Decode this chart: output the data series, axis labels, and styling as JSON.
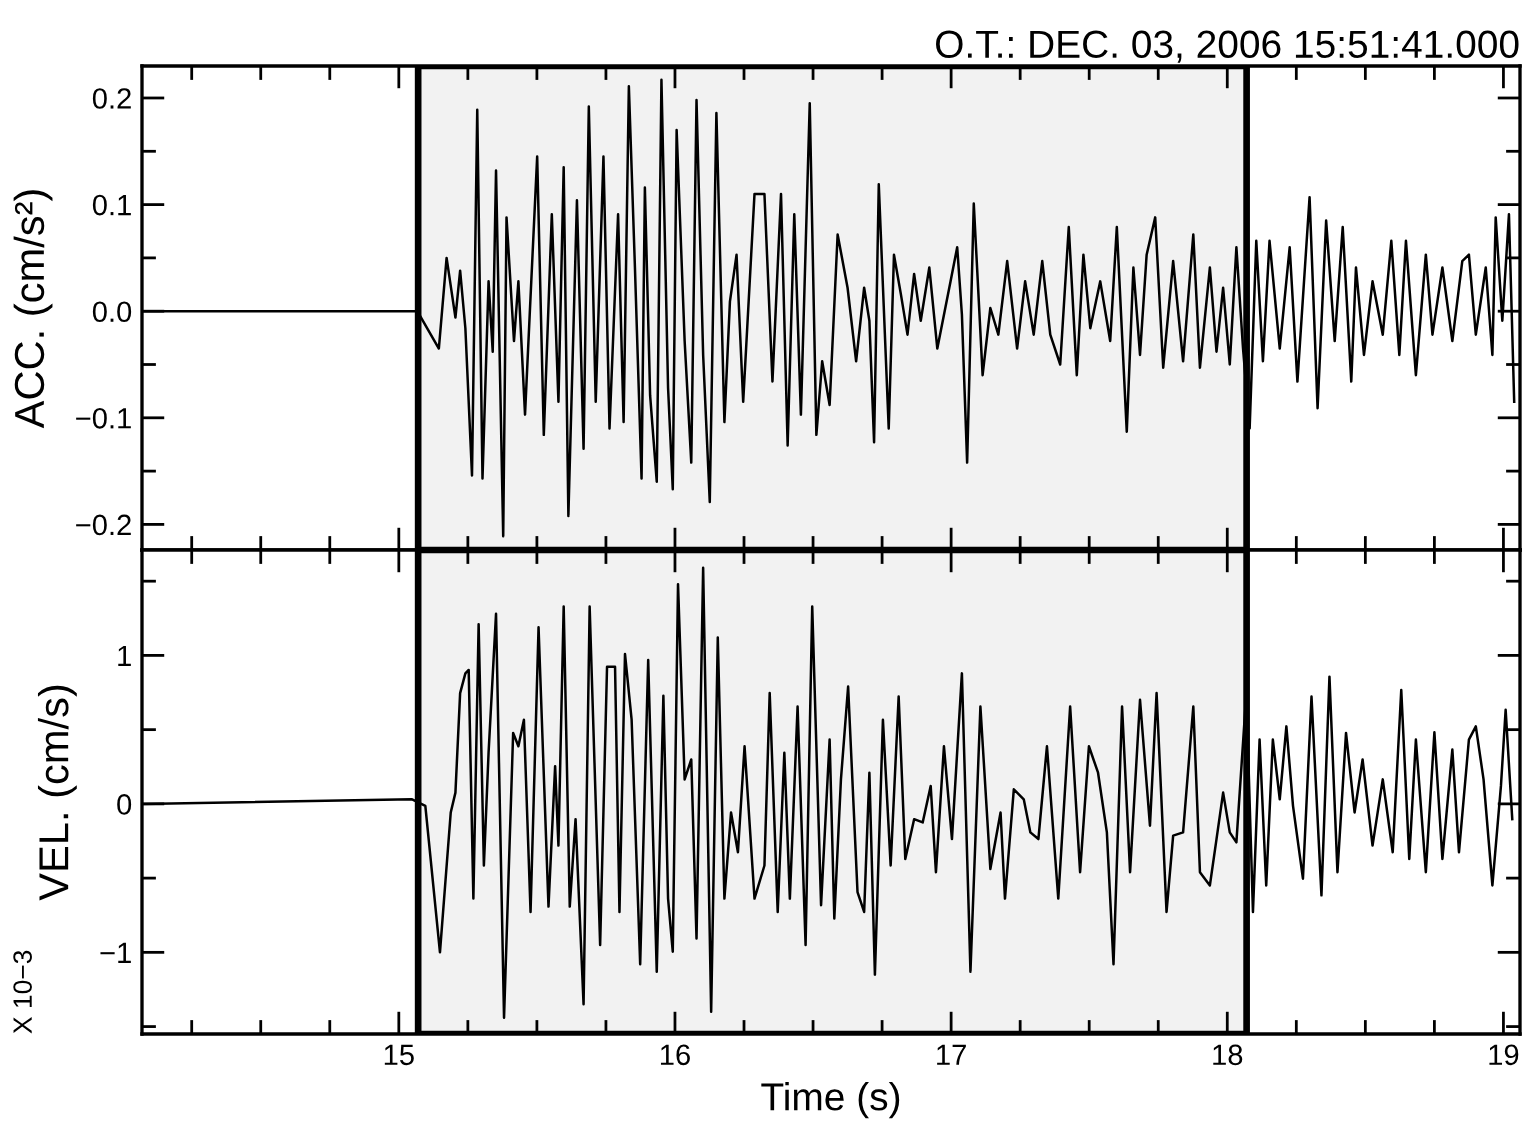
{
  "chart_data": [
    {
      "type": "line",
      "title": "O.T.: DEC. 03, 2006 15:51:41.000",
      "ylabel": "ACC. (cm/s²)",
      "color": "#000000",
      "tick_labels": "y",
      "xlim": [
        14.07,
        19.06
      ],
      "ylim": [
        -0.224,
        0.23
      ],
      "xticks": [
        15,
        16,
        17,
        18,
        19
      ],
      "yticks": [
        {
          "value": -0.2,
          "label": "−0.2"
        },
        {
          "value": -0.1,
          "label": "−0.1"
        },
        {
          "value": 0,
          "label": "0.0"
        },
        0.1,
        0.2
      ],
      "bands": [
        {
          "axis": "x",
          "from": 15.07,
          "to": 18.07,
          "color": "#000000"
        }
      ],
      "x": [
        14.073,
        15.067,
        15.145,
        15.173,
        15.205,
        15.222,
        15.241,
        15.265,
        15.284,
        15.303,
        15.325,
        15.34,
        15.352,
        15.378,
        15.39,
        15.417,
        15.433,
        15.457,
        15.474,
        15.501,
        15.525,
        15.554,
        15.578,
        15.597,
        15.614,
        15.645,
        15.669,
        15.688,
        15.713,
        15.741,
        15.763,
        15.794,
        15.814,
        15.833,
        15.855,
        15.879,
        15.891,
        15.91,
        15.934,
        15.951,
        15.975,
        15.992,
        16.006,
        16.035,
        16.059,
        16.078,
        16.102,
        16.126,
        16.15,
        16.179,
        16.199,
        16.223,
        16.247,
        16.288,
        16.324,
        16.353,
        16.384,
        16.408,
        16.432,
        16.456,
        16.488,
        16.512,
        16.533,
        16.56,
        16.589,
        16.625,
        16.656,
        16.685,
        16.704,
        16.721,
        16.738,
        16.774,
        16.793,
        16.818,
        16.842,
        16.866,
        16.89,
        16.921,
        16.95,
        16.998,
        17.022,
        17.039,
        17.058,
        17.082,
        17.114,
        17.142,
        17.171,
        17.203,
        17.239,
        17.268,
        17.299,
        17.33,
        17.359,
        17.395,
        17.426,
        17.455,
        17.479,
        17.504,
        17.54,
        17.576,
        17.6,
        17.636,
        17.66,
        17.684,
        17.708,
        17.739,
        17.768,
        17.804,
        17.84,
        17.877,
        17.901,
        17.937,
        17.961,
        17.985,
        18.009,
        18.033,
        18.057,
        18.081,
        18.105,
        18.129,
        18.153,
        18.19,
        18.226,
        18.254,
        18.298,
        18.327,
        18.358,
        18.389,
        18.418,
        18.449,
        18.466,
        18.495,
        18.526,
        18.563,
        18.594,
        18.623,
        18.647,
        18.683,
        18.719,
        18.743,
        18.779,
        18.815,
        18.851,
        18.875,
        18.9,
        18.936,
        18.96,
        18.972,
        18.996,
        19.02,
        19.039
      ],
      "values": [
        0,
        0,
        -0.035,
        0.05,
        -0.006,
        0.038,
        -0.016,
        -0.154,
        0.189,
        -0.157,
        0.028,
        -0.038,
        0.132,
        -0.211,
        0.088,
        -0.028,
        0.028,
        -0.097,
        -0.003,
        0.145,
        -0.116,
        0.091,
        -0.085,
        0.135,
        -0.192,
        0.104,
        -0.129,
        0.192,
        -0.085,
        0.145,
        -0.11,
        0.091,
        -0.104,
        0.211,
        0.041,
        -0.157,
        0.116,
        -0.079,
        -0.16,
        0.217,
        -0.072,
        -0.167,
        0.17,
        -0.028,
        -0.142,
        0.198,
        -0.041,
        -0.179,
        0.186,
        -0.104,
        0.009,
        0.053,
        -0.085,
        0.11,
        0.11,
        -0.066,
        0.11,
        -0.126,
        0.091,
        -0.097,
        0.195,
        -0.116,
        -0.047,
        -0.088,
        0.072,
        0.022,
        -0.047,
        0.022,
        -0.009,
        -0.123,
        0.119,
        -0.11,
        0.053,
        0.016,
        -0.022,
        0.035,
        -0.009,
        0.041,
        -0.035,
        0.028,
        0.06,
        -0.003,
        -0.142,
        0.101,
        -0.06,
        0.003,
        -0.022,
        0.047,
        -0.035,
        0.028,
        -0.022,
        0.047,
        -0.022,
        -0.05,
        0.079,
        -0.06,
        0.053,
        -0.016,
        0.028,
        -0.028,
        0.079,
        -0.113,
        0.041,
        -0.041,
        0.053,
        0.088,
        -0.053,
        0.047,
        -0.047,
        0.072,
        -0.053,
        0.041,
        -0.038,
        0.022,
        -0.05,
        0.06,
        -0.035,
        -0.11,
        0.066,
        -0.047,
        0.066,
        -0.035,
        0.06,
        -0.066,
        0.107,
        -0.091,
        0.085,
        -0.028,
        0.079,
        -0.066,
        0.041,
        -0.041,
        0.028,
        -0.022,
        0.066,
        -0.041,
        0.066,
        -0.06,
        0.053,
        -0.022,
        0.041,
        -0.028,
        0.047,
        0.053,
        -0.022,
        0.041,
        -0.041,
        0.088,
        -0.009,
        0.091,
        -0.085
      ]
    },
    {
      "type": "line",
      "ylabel": "VEL. (cm/s)",
      "xlabel": "Time (s)",
      "color": "#000000",
      "annotations": [
        "X 10−3"
      ],
      "xlim": [
        14.07,
        19.06
      ],
      "ylim": [
        -1.55,
        1.71
      ],
      "xticks": [
        15,
        16,
        17,
        18,
        19
      ],
      "yticks": [
        {
          "value": -1,
          "label": "−1"
        },
        0,
        1
      ],
      "bands": [
        {
          "axis": "x",
          "from": 15.07,
          "to": 18.07,
          "color": "#000000"
        }
      ],
      "x": [
        14.073,
        15.048,
        15.096,
        15.149,
        15.188,
        15.205,
        15.222,
        15.241,
        15.253,
        15.27,
        15.289,
        15.308,
        15.325,
        15.352,
        15.381,
        15.414,
        15.433,
        15.453,
        15.477,
        15.506,
        15.542,
        15.566,
        15.578,
        15.597,
        15.619,
        15.64,
        15.669,
        15.691,
        15.729,
        15.754,
        15.783,
        15.799,
        15.819,
        15.843,
        15.874,
        15.903,
        15.934,
        15.958,
        15.975,
        15.992,
        16.011,
        16.035,
        16.059,
        16.078,
        16.102,
        16.131,
        16.155,
        16.179,
        16.203,
        16.228,
        16.252,
        16.288,
        16.324,
        16.343,
        16.372,
        16.396,
        16.416,
        16.444,
        16.473,
        16.497,
        16.529,
        16.56,
        16.577,
        16.601,
        16.627,
        16.661,
        16.685,
        16.704,
        16.724,
        16.753,
        16.781,
        16.81,
        16.834,
        16.866,
        16.897,
        16.926,
        16.945,
        16.974,
        17.003,
        17.039,
        17.07,
        17.106,
        17.142,
        17.179,
        17.195,
        17.227,
        17.263,
        17.287,
        17.316,
        17.347,
        17.388,
        17.431,
        17.467,
        17.499,
        17.532,
        17.564,
        17.588,
        17.619,
        17.648,
        17.684,
        17.72,
        17.744,
        17.78,
        17.804,
        17.84,
        17.877,
        17.901,
        17.937,
        17.961,
        17.985,
        18.009,
        18.033,
        18.069,
        18.093,
        18.117,
        18.141,
        18.165,
        18.19,
        18.214,
        18.238,
        18.274,
        18.305,
        18.341,
        18.37,
        18.399,
        18.43,
        18.461,
        18.49,
        18.526,
        18.563,
        18.599,
        18.63,
        18.659,
        18.683,
        18.719,
        18.75,
        18.779,
        18.815,
        18.839,
        18.875,
        18.9,
        18.928,
        18.96,
        18.991,
        19.008,
        19.032
      ],
      "values": [
        0,
        0.031,
        -0.013,
        -1.0,
        -0.058,
        0.076,
        0.746,
        0.879,
        0.902,
        -0.638,
        1.21,
        -0.415,
        0.344,
        1.28,
        -1.44,
        0.478,
        0.388,
        0.567,
        -0.728,
        1.19,
        -0.692,
        0.254,
        -0.281,
        1.33,
        -0.692,
        -0.103,
        -1.35,
        1.33,
        -0.951,
        0.924,
        0.924,
        -0.728,
        1.01,
        0.567,
        -1.08,
        0.969,
        -1.13,
        0.728,
        -0.638,
        -0.996,
        1.48,
        0.165,
        0.299,
        -0.906,
        1.59,
        -1.4,
        1.12,
        -0.638,
        -0.058,
        -0.326,
        0.388,
        -0.638,
        -0.415,
        0.746,
        -0.728,
        0.344,
        -0.638,
        0.656,
        -0.951,
        1.33,
        -0.683,
        0.433,
        -0.772,
        0.165,
        0.79,
        -0.594,
        -0.728,
        0.21,
        -1.15,
        0.567,
        -0.415,
        0.723,
        -0.371,
        -0.103,
        -0.125,
        0.121,
        -0.46,
        0.388,
        -0.237,
        0.879,
        -1.13,
        0.656,
        -0.438,
        -0.058,
        -0.638,
        0.098,
        0.031,
        -0.192,
        -0.237,
        0.388,
        -0.638,
        0.656,
        -0.46,
        0.388,
        0.21,
        -0.192,
        -1.08,
        0.656,
        -0.46,
        0.701,
        -0.147,
        0.746,
        -0.728,
        -0.214,
        -0.192,
        0.656,
        -0.46,
        -0.549,
        -0.237,
        0.076,
        -0.192,
        -0.259,
        0.746,
        -0.728,
        0.433,
        -0.549,
        0.433,
        0.031,
        0.522,
        -0.013,
        -0.504,
        0.723,
        -0.616,
        0.857,
        -0.46,
        0.478,
        -0.058,
        0.299,
        -0.281,
        0.165,
        -0.326,
        0.767,
        -0.371,
        0.433,
        -0.46,
        0.482,
        -0.371,
        0.366,
        -0.326,
        0.433,
        0.522,
        0.165,
        -0.549,
        0.121,
        0.634,
        -0.103
      ]
    }
  ]
}
